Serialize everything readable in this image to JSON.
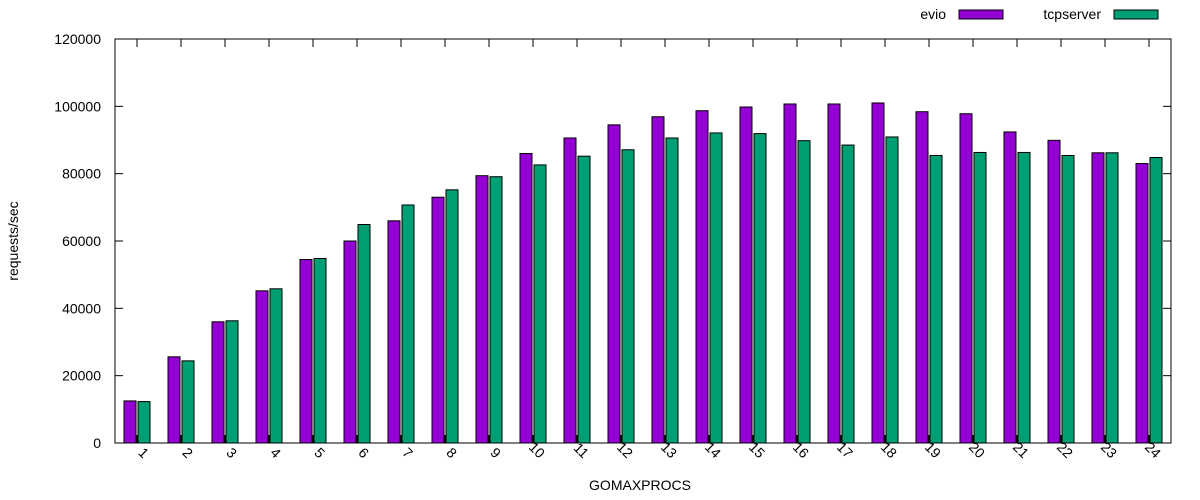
{
  "chart_data": {
    "type": "bar",
    "title": "",
    "xlabel": "GOMAXPROCS",
    "ylabel": "requests/sec",
    "ylim": [
      0,
      120000
    ],
    "yticks": [
      0,
      20000,
      40000,
      60000,
      80000,
      100000,
      120000
    ],
    "grid": false,
    "legend_position": "top-right",
    "categories": [
      "1",
      "2",
      "3",
      "4",
      "5",
      "6",
      "7",
      "8",
      "9",
      "10",
      "11",
      "12",
      "13",
      "14",
      "15",
      "16",
      "17",
      "18",
      "19",
      "20",
      "21",
      "22",
      "23",
      "24"
    ],
    "series": [
      {
        "name": "evio",
        "color": "#9400d3",
        "values": [
          12500,
          25600,
          36000,
          45200,
          54500,
          60000,
          66000,
          73000,
          79400,
          86000,
          90600,
          94500,
          96900,
          98700,
          99800,
          100700,
          100700,
          101000,
          98400,
          97800,
          92400,
          89900,
          86200,
          83000
        ]
      },
      {
        "name": "tcpserver",
        "color": "#009e73",
        "values": [
          12300,
          24400,
          36300,
          45800,
          54800,
          64900,
          70700,
          75200,
          79100,
          82600,
          85200,
          87100,
          90600,
          92100,
          91900,
          89800,
          88500,
          90900,
          85400,
          86300,
          86300,
          85400,
          86200,
          84800
        ]
      }
    ]
  }
}
